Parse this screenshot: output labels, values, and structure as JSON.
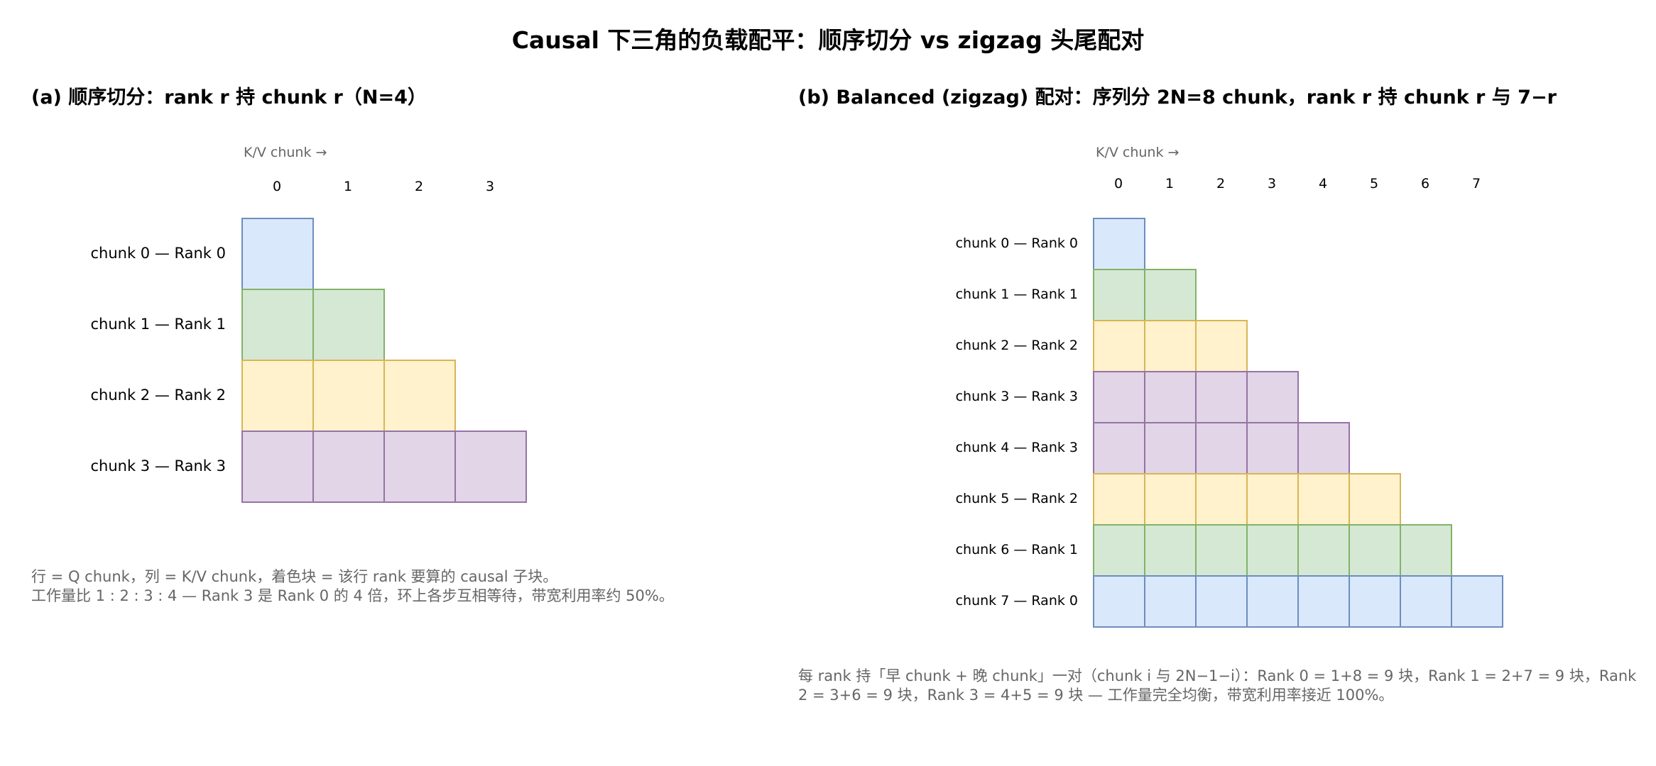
{
  "title": "Causal 下三角的负载配平：顺序切分 vs zigzag 头尾配对",
  "colors": {
    "blue": {
      "fill": "#dae8fc",
      "stroke": "#6c8ebf"
    },
    "green": {
      "fill": "#d5e8d4",
      "stroke": "#82b366"
    },
    "yellow": {
      "fill": "#fff2cc",
      "stroke": "#d6b656"
    },
    "purple": {
      "fill": "#e1d5e7",
      "stroke": "#9673a6"
    }
  },
  "panels": [
    {
      "id": "a",
      "heading": "(a) 顺序切分：rank r 持 chunk r（N=4）",
      "axis_caption": "K/V chunk →",
      "columns": [
        "0",
        "1",
        "2",
        "3"
      ],
      "rows": [
        {
          "label": "chunk 0 — Rank 0",
          "cells": 1,
          "color": "blue"
        },
        {
          "label": "chunk 1 — Rank 1",
          "cells": 2,
          "color": "green"
        },
        {
          "label": "chunk 2 — Rank 2",
          "cells": 3,
          "color": "yellow"
        },
        {
          "label": "chunk 3 — Rank 3",
          "cells": 4,
          "color": "purple"
        }
      ],
      "notes": [
        "行 = Q chunk，列 = K/V chunk，着色块 = 该行 rank 要算的 causal 子块。",
        "工作量比 1 : 2 : 3 : 4 — Rank 3 是 Rank 0 的 4 倍，环上各步互相等待，带宽利用率约 50%。"
      ]
    },
    {
      "id": "b",
      "heading": "(b) Balanced (zigzag) 配对：序列分 2N=8 chunk，rank r 持 chunk r 与 7−r",
      "axis_caption": "K/V chunk →",
      "columns": [
        "0",
        "1",
        "2",
        "3",
        "4",
        "5",
        "6",
        "7"
      ],
      "rows": [
        {
          "label": "chunk 0 — Rank 0",
          "cells": 1,
          "color": "blue"
        },
        {
          "label": "chunk 1 — Rank 1",
          "cells": 2,
          "color": "green"
        },
        {
          "label": "chunk 2 — Rank 2",
          "cells": 3,
          "color": "yellow"
        },
        {
          "label": "chunk 3 — Rank 3",
          "cells": 4,
          "color": "purple"
        },
        {
          "label": "chunk 4 — Rank 3",
          "cells": 5,
          "color": "purple"
        },
        {
          "label": "chunk 5 — Rank 2",
          "cells": 6,
          "color": "yellow"
        },
        {
          "label": "chunk 6 — Rank 1",
          "cells": 7,
          "color": "green"
        },
        {
          "label": "chunk 7 — Rank 0",
          "cells": 8,
          "color": "blue"
        }
      ],
      "notes": [
        "每 rank 持「早 chunk + 晚 chunk」一对（chunk i 与 2N−1−i）：Rank 0 = 1+8 = 9 块，Rank 1 = 2+7 = 9 块，Rank 2 = 3+6 = 9 块，Rank 3 = 4+5 = 9 块 — 工作量完全均衡，带宽利用率接近 100%。"
      ]
    }
  ]
}
